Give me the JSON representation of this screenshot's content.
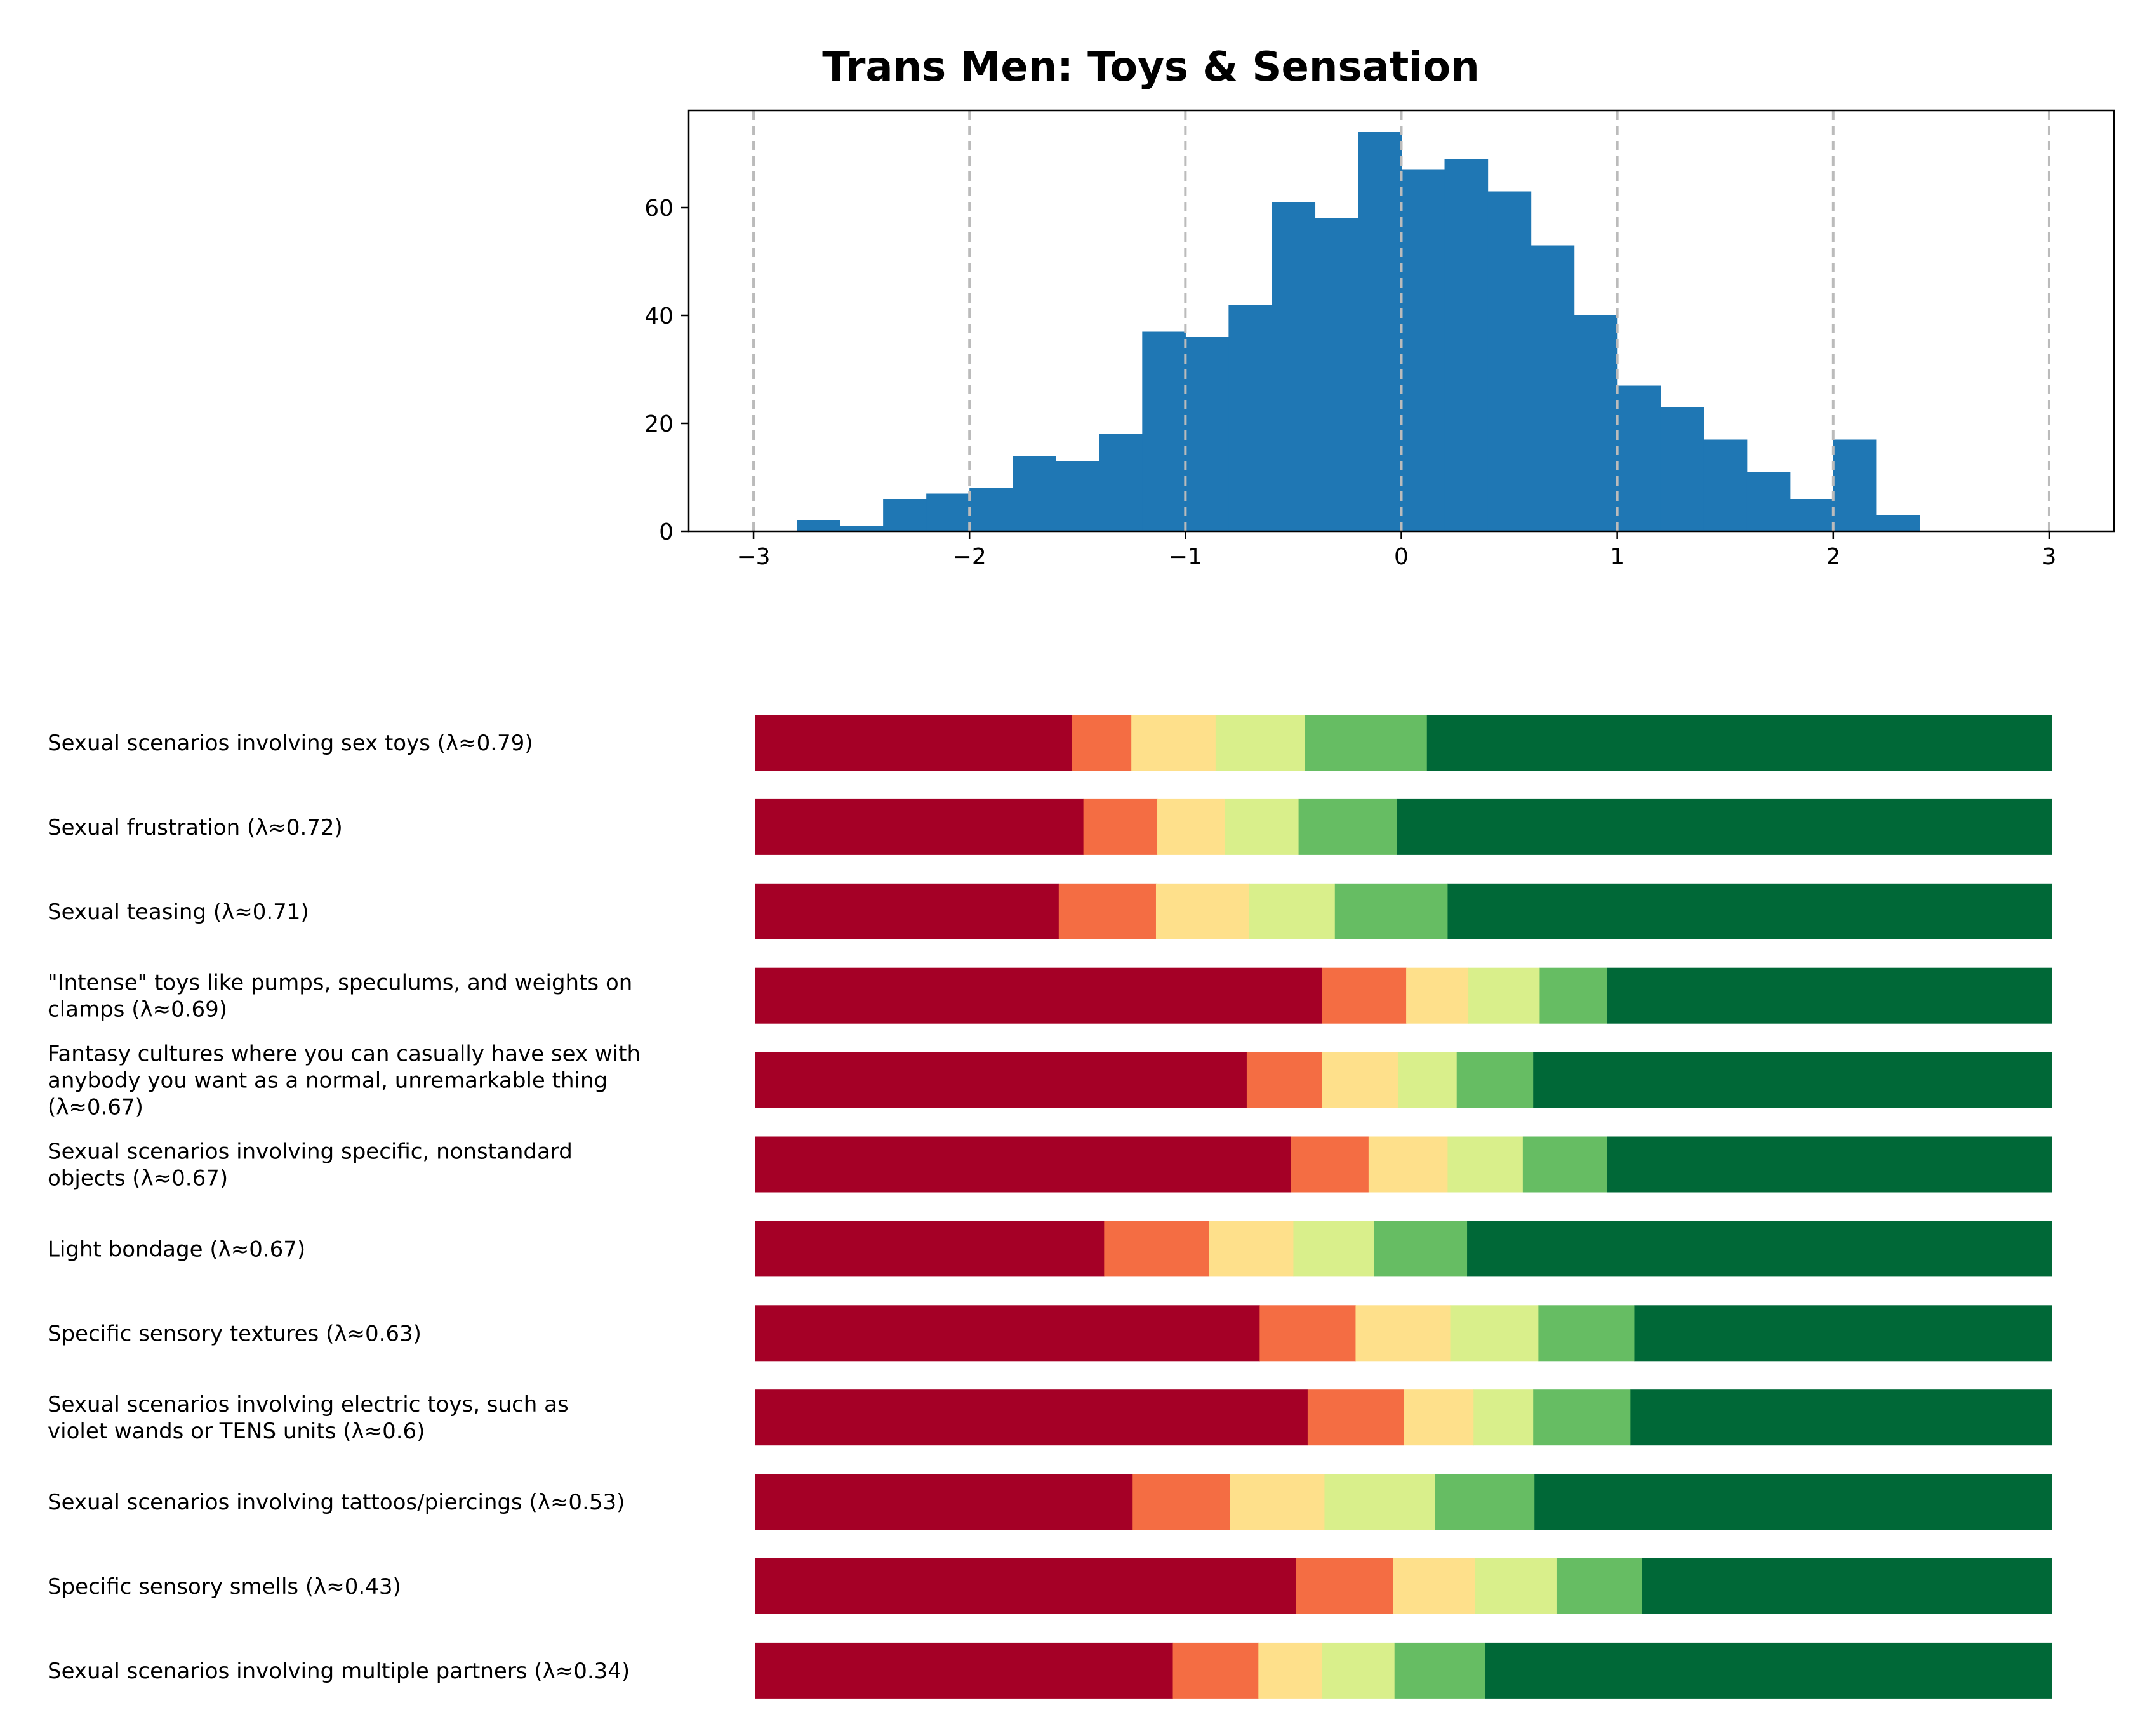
{
  "title": "Trans Men: Toys & Sensation",
  "chart_data": [
    {
      "type": "bar",
      "subtype": "histogram",
      "title": "Trans Men: Toys & Sensation",
      "xlabel": "",
      "ylabel": "",
      "xlim": [
        -3.3,
        3.3
      ],
      "ylim": [
        0,
        78
      ],
      "x_ticks": [
        -3,
        -2,
        -1,
        0,
        1,
        2,
        3
      ],
      "x_tick_labels": [
        "−3",
        "−2",
        "−1",
        "0",
        "1",
        "2",
        "3"
      ],
      "y_ticks": [
        0,
        20,
        40,
        60
      ],
      "y_tick_labels": [
        "0",
        "20",
        "40",
        "60"
      ],
      "grid": "vertical dashed lines at x ticks",
      "bar_color": "#1f77b4",
      "grid_color": "#bbbbbb",
      "bin_width": 0.2,
      "bin_starts": [
        -2.8,
        -2.6,
        -2.4,
        -2.2,
        -2.0,
        -1.8,
        -1.6,
        -1.4,
        -1.2,
        -1.0,
        -0.8,
        -0.6,
        -0.4,
        -0.2,
        0.0,
        0.2,
        0.4,
        0.6,
        0.8,
        1.0,
        1.2,
        1.4,
        1.6,
        1.8,
        2.0,
        2.2
      ],
      "counts": [
        2,
        1,
        6,
        7,
        8,
        14,
        13,
        18,
        37,
        36,
        42,
        61,
        58,
        74,
        67,
        69,
        63,
        53,
        40,
        27,
        23,
        17,
        11,
        6,
        17,
        3
      ]
    },
    {
      "type": "bar",
      "subtype": "stacked horizontal 100%",
      "xlabel": "",
      "ylabel": "",
      "colors": [
        "#a50026",
        "#f46d43",
        "#fee08b",
        "#d9ef8b",
        "#66bd63",
        "#006837"
      ],
      "categories": [
        [
          "Sexual scenarios involving sex toys (λ≈0.79)"
        ],
        [
          "Sexual frustration (λ≈0.72)"
        ],
        [
          "Sexual teasing (λ≈0.71)"
        ],
        [
          "\"Intense\" toys like pumps, speculums, and weights on",
          "clamps (λ≈0.69)"
        ],
        [
          "Fantasy cultures where you can casually have sex with",
          "anybody you want as a normal, unremarkable thing",
          "(λ≈0.67)"
        ],
        [
          "Sexual scenarios involving specific, nonstandard",
          "objects (λ≈0.67)"
        ],
        [
          "Light bondage (λ≈0.67)"
        ],
        [
          "Specific sensory textures (λ≈0.63)"
        ],
        [
          "Sexual scenarios involving electric toys, such as",
          "violet wands or TENS units (λ≈0.6)"
        ],
        [
          "Sexual scenarios involving tattoos/piercings (λ≈0.53)"
        ],
        [
          "Specific sensory smells (λ≈0.43)"
        ],
        [
          "Sexual scenarios involving multiple partners (λ≈0.34)"
        ]
      ],
      "values": [
        [
          24.4,
          4.6,
          6.5,
          6.9,
          9.4,
          48.2
        ],
        [
          25.3,
          5.7,
          5.2,
          5.7,
          7.6,
          50.5
        ],
        [
          23.4,
          7.5,
          7.2,
          6.6,
          8.7,
          46.6
        ],
        [
          43.7,
          6.5,
          4.8,
          5.5,
          5.2,
          34.3
        ],
        [
          37.9,
          5.8,
          5.9,
          4.5,
          5.9,
          40.0
        ],
        [
          41.3,
          6.0,
          6.1,
          5.8,
          6.5,
          34.3
        ],
        [
          26.9,
          8.1,
          6.5,
          6.2,
          7.2,
          45.1
        ],
        [
          38.9,
          7.4,
          7.3,
          6.8,
          7.4,
          32.2
        ],
        [
          42.6,
          7.4,
          5.4,
          4.6,
          7.5,
          32.5
        ],
        [
          29.1,
          7.5,
          7.3,
          8.5,
          7.7,
          39.9
        ],
        [
          41.7,
          7.5,
          6.3,
          6.3,
          6.6,
          31.6
        ],
        [
          32.2,
          6.6,
          4.9,
          5.6,
          7.0,
          43.7
        ]
      ]
    }
  ]
}
